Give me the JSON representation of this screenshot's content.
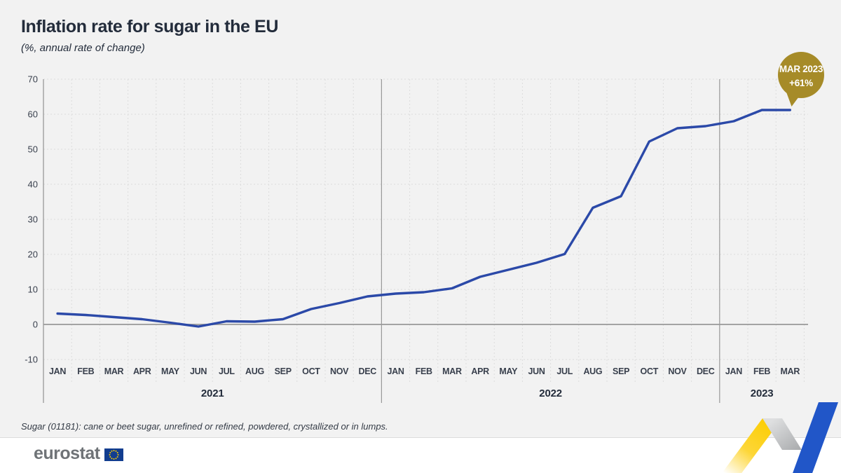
{
  "header": {
    "title": "Inflation rate for sugar in the EU",
    "subtitle": "(%, annual rate of change)"
  },
  "chart_data": {
    "type": "line",
    "title": "Inflation rate for sugar in the EU",
    "ylabel": "%, annual rate of change",
    "x": [
      "JAN",
      "FEB",
      "MAR",
      "APR",
      "MAY",
      "JUN",
      "JUL",
      "AUG",
      "SEP",
      "OCT",
      "NOV",
      "DEC",
      "JAN",
      "FEB",
      "MAR",
      "APR",
      "MAY",
      "JUN",
      "JUL",
      "AUG",
      "SEP",
      "OCT",
      "NOV",
      "DEC",
      "JAN",
      "FEB",
      "MAR"
    ],
    "year_groups": [
      {
        "label": "2021",
        "months": 12
      },
      {
        "label": "2022",
        "months": 12
      },
      {
        "label": "2023",
        "months": 3
      }
    ],
    "values": [
      3.1,
      2.7,
      2.1,
      1.5,
      0.5,
      -0.6,
      0.9,
      0.8,
      1.5,
      4.4,
      6.1,
      8.0,
      8.8,
      9.2,
      10.3,
      13.6,
      15.6,
      17.6,
      20.1,
      33.3,
      36.6,
      52.2,
      56.0,
      56.6,
      58.0,
      61.2,
      61.2
    ],
    "ylim": [
      -10,
      70
    ],
    "ytick_step": 10,
    "yticks": [
      70,
      60,
      50,
      40,
      30,
      20,
      10,
      0,
      -10
    ],
    "grid": "dashed horizontal every 10; dashed vertical at month boundaries; solid zero line; solid vertical year separators",
    "legend": "none",
    "line_color": "#2b49a8",
    "annotation": {
      "x_index": 26,
      "value": 61,
      "label": "MAR 2023 +61%"
    }
  },
  "badge": {
    "line1": "MAR 2023",
    "line2": "+61%"
  },
  "footnote": "Sugar (01181): cane or beet sugar, unrefined or refined, powdered, crystallized or in lumps.",
  "footer": {
    "logo_text": "eurostat"
  },
  "colors": {
    "background": "#f2f2f2",
    "footer_background": "#ffffff",
    "title_text": "#232c3b",
    "axis_text": "#39404d",
    "line": "#2b49a8",
    "badge": "#a68b28",
    "badge_text": "#ffffff",
    "grid": "#dcdcdc",
    "axis": "#999999",
    "ribbon_yellow": "#fdd11d",
    "ribbon_gray": "#bfc1c3",
    "ribbon_blue": "#2156c8",
    "logo_gray": "#6f7377",
    "flag_blue": "#123d8f",
    "flag_stars": "#ffcc00"
  }
}
